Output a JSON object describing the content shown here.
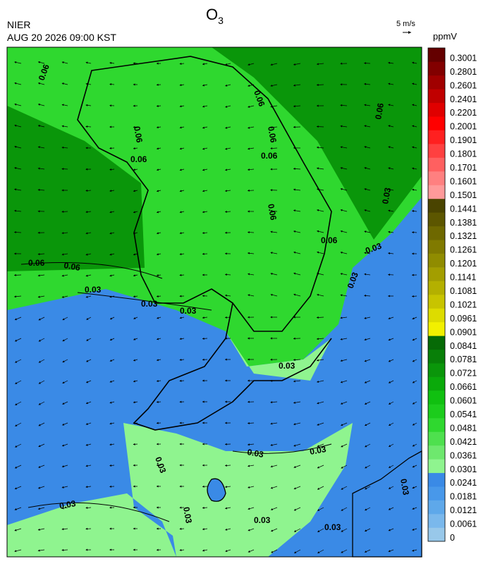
{
  "header": {
    "title": {
      "main": "O",
      "subscript": "3"
    },
    "agency": "NIER",
    "datetime": "AUG 20 2026 09:00 KST",
    "wind_scale": "5 m/s"
  },
  "colorbar": {
    "unit": "ppmV",
    "levels": [
      0,
      0.0061,
      0.0121,
      0.0181,
      0.0241,
      0.0301,
      0.0361,
      0.0421,
      0.0481,
      0.0541,
      0.0601,
      0.0661,
      0.0721,
      0.0781,
      0.0841,
      0.0901,
      0.0961,
      0.1021,
      0.1081,
      0.1141,
      0.1201,
      0.1261,
      0.1321,
      0.1381,
      0.1441,
      0.1501,
      0.1601,
      0.1701,
      0.1801,
      0.1901,
      0.2001,
      0.2201,
      0.2401,
      0.2601,
      0.2801,
      0.3001
    ],
    "colors": [
      "#98c8ea",
      "#7ab8ec",
      "#5ea8ea",
      "#4898ea",
      "#3a8ae6",
      "#8ff48f",
      "#6ee86e",
      "#4ee04e",
      "#2fd82f",
      "#1ccc1c",
      "#10c010",
      "#0aaa0a",
      "#0a960a",
      "#087f08",
      "#066a06",
      "#f2f000",
      "#dddc00",
      "#c8c400",
      "#b4b000",
      "#a39e00",
      "#908c00",
      "#807a00",
      "#6e6800",
      "#5c5600",
      "#4a4400",
      "#ff9a9a",
      "#ff8080",
      "#ff6060",
      "#ff4040",
      "#ff2020",
      "#ff0000",
      "#e00000",
      "#c00000",
      "#a00000",
      "#820000",
      "#640000"
    ]
  },
  "contour_labels": [
    "0.06",
    "0.03"
  ]
}
